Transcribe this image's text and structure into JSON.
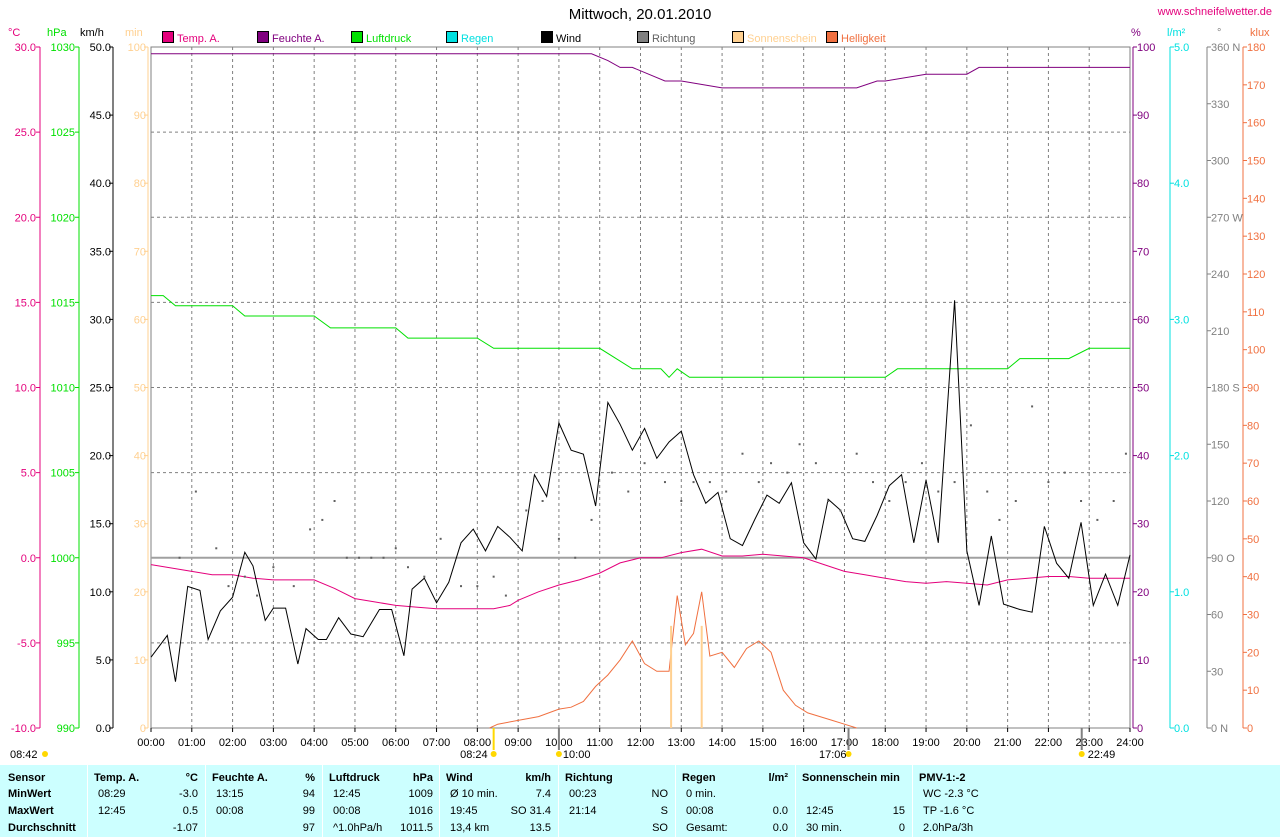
{
  "title": "Mittwoch, 20.01.2010",
  "site": "www.schneifelwetter.de",
  "colors": {
    "temp": "#e4007c",
    "humidity": "#80007f",
    "pressure": "#00e000",
    "rain": "#00e0e0",
    "wind": "#000000",
    "direction": "#808080",
    "sunshine": "#ffd090",
    "brightness": "#f07040",
    "grid": "#808080"
  },
  "legend": [
    {
      "label": "Temp. A.",
      "color": "#e4007c"
    },
    {
      "label": "Feuchte A.",
      "color": "#80007f"
    },
    {
      "label": "Luftdruck",
      "color": "#00e000"
    },
    {
      "label": "Regen",
      "color": "#00e0e0"
    },
    {
      "label": "Wind",
      "color": "#000000"
    },
    {
      "label": "Richtung",
      "color": "#808080"
    },
    {
      "label": "Sonnenschein",
      "color": "#ffd090"
    },
    {
      "label": "Helligkeit",
      "color": "#f07040"
    }
  ],
  "units": {
    "temp": "°C",
    "pressure": "hPa",
    "wind": "km/h",
    "sun": "min",
    "humidity": "%",
    "rain": "l/m²",
    "direction": "°",
    "lux": "klux"
  },
  "sun_events": {
    "moonrise": "08:42",
    "sunrise": "08:24",
    "noon": "10:00",
    "sunset": "17:06",
    "moonset": "22:49"
  },
  "chart_data": {
    "type": "line",
    "x_unit": "hour of day",
    "x_ticks": [
      "00:00",
      "01:00",
      "02:00",
      "03:00",
      "04:00",
      "05:00",
      "06:00",
      "07:00",
      "08:00",
      "09:00",
      "10:00",
      "11:00",
      "12:00",
      "13:00",
      "14:00",
      "15:00",
      "16:00",
      "17:00",
      "18:00",
      "19:00",
      "20:00",
      "21:00",
      "22:00",
      "23:00",
      "24:00"
    ],
    "axes": {
      "temp": {
        "label": "°C",
        "ticks": [
          "30.0",
          "25.0",
          "20.0",
          "15.0",
          "10.0",
          "5.0",
          "0.0",
          "-5.0",
          "-10.0"
        ],
        "ylim": [
          -10,
          30
        ]
      },
      "pressure": {
        "label": "hPa",
        "ticks": [
          "1030",
          "1025",
          "1020",
          "1015",
          "1010",
          "1005",
          "1000",
          "995",
          "990"
        ],
        "ylim": [
          990,
          1030
        ]
      },
      "wind": {
        "label": "km/h",
        "ticks": [
          "50.0",
          "45.0",
          "40.0",
          "35.0",
          "30.0",
          "25.0",
          "20.0",
          "15.0",
          "10.0",
          "5.0",
          "0.0"
        ],
        "ylim": [
          0,
          50
        ]
      },
      "sun": {
        "label": "min",
        "ticks": [
          "100",
          "90",
          "80",
          "70",
          "60",
          "50",
          "40",
          "30",
          "20",
          "10",
          "0"
        ],
        "ylim": [
          0,
          100
        ]
      },
      "humidity": {
        "label": "%",
        "ticks": [
          "100",
          "90",
          "80",
          "70",
          "60",
          "50",
          "40",
          "30",
          "20",
          "10",
          "0"
        ],
        "ylim": [
          0,
          100
        ]
      },
      "rain": {
        "label": "l/m²",
        "ticks": [
          "5.0",
          "4.0",
          "3.0",
          "2.0",
          "1.0",
          "0.0"
        ],
        "ylim": [
          0,
          5
        ]
      },
      "direction": {
        "label": "°",
        "ticks": [
          "360 N",
          "330",
          "300",
          "270 W",
          "240",
          "210",
          "180 S",
          "150",
          "120",
          "90 O",
          "60",
          "30",
          "0 N"
        ],
        "ylim": [
          0,
          360
        ]
      },
      "lux": {
        "label": "klux",
        "ticks": [
          "180",
          "170",
          "160",
          "150",
          "140",
          "130",
          "120",
          "110",
          "100",
          "90",
          "80",
          "70",
          "60",
          "50",
          "40",
          "30",
          "20",
          "10",
          "0"
        ],
        "ylim": [
          0,
          180
        ]
      }
    },
    "series": [
      {
        "name": "Temp. A.",
        "axis": "temp",
        "x": [
          0,
          0.5,
          1,
          1.5,
          2,
          2.5,
          3,
          3.5,
          4,
          4.5,
          5,
          5.5,
          6,
          6.5,
          7,
          7.5,
          8,
          8.4,
          8.8,
          9,
          9.5,
          10,
          10.5,
          11,
          11.5,
          12,
          12.5,
          13,
          13.5,
          14,
          14.5,
          15,
          15.5,
          16,
          16.5,
          17,
          17.5,
          18,
          18.5,
          19,
          19.5,
          20,
          20.5,
          21,
          21.5,
          22,
          22.5,
          23,
          23.5,
          24
        ],
        "y": [
          -0.4,
          -0.6,
          -0.8,
          -1.0,
          -1.0,
          -1.2,
          -1.3,
          -1.3,
          -1.3,
          -1.8,
          -2.4,
          -2.6,
          -2.8,
          -2.9,
          -3.0,
          -3.0,
          -3.0,
          -3.0,
          -2.8,
          -2.5,
          -2.0,
          -1.6,
          -1.3,
          -0.9,
          -0.3,
          0.0,
          0.0,
          0.3,
          0.5,
          0.1,
          0.1,
          0.2,
          0.1,
          0.0,
          -0.4,
          -0.8,
          -1.0,
          -1.2,
          -1.4,
          -1.5,
          -1.4,
          -1.5,
          -1.6,
          -1.3,
          -1.2,
          -1.1,
          -1.1,
          -1.2,
          -1.2,
          -1.2
        ]
      },
      {
        "name": "Feuchte A.",
        "axis": "humidity",
        "x": [
          0,
          1,
          2,
          3,
          4,
          5,
          6,
          7,
          8,
          9,
          10,
          10.8,
          11.2,
          11.5,
          11.8,
          12.2,
          12.6,
          13,
          14,
          15,
          16,
          17,
          17.3,
          17.8,
          18,
          19,
          19.5,
          20,
          20.3,
          21,
          22,
          23,
          24
        ],
        "y": [
          99,
          99,
          99,
          99,
          99,
          99,
          99,
          99,
          99,
          99,
          99,
          99,
          98,
          97,
          97,
          96,
          95,
          95,
          94,
          94,
          94,
          94,
          94,
          95,
          95,
          96,
          96,
          96,
          97,
          97,
          97,
          97,
          97
        ]
      },
      {
        "name": "Luftdruck",
        "axis": "pressure",
        "x": [
          0,
          0.3,
          0.6,
          1,
          2,
          2.3,
          3,
          4,
          4.4,
          5,
          6,
          6.3,
          7,
          8,
          8.4,
          9,
          10,
          11,
          11.8,
          12.5,
          12.7,
          12.9,
          13.2,
          14,
          15,
          16,
          17,
          17.5,
          18,
          18.3,
          19,
          20,
          20.3,
          21,
          21.3,
          22,
          22.5,
          23,
          24
        ],
        "y": [
          1015.4,
          1015.4,
          1014.8,
          1014.8,
          1014.8,
          1014.2,
          1014.2,
          1014.2,
          1013.5,
          1013.5,
          1013.5,
          1012.9,
          1012.9,
          1012.9,
          1012.3,
          1012.3,
          1012.3,
          1012.3,
          1011.1,
          1011.1,
          1010.6,
          1011.1,
          1010.6,
          1010.6,
          1010.6,
          1010.6,
          1010.6,
          1010.6,
          1010.6,
          1011.1,
          1011.1,
          1011.1,
          1011.1,
          1011.1,
          1011.7,
          1011.7,
          1011.7,
          1012.3,
          1012.3
        ]
      },
      {
        "name": "Wind",
        "axis": "wind",
        "x": [
          0,
          0.4,
          0.6,
          0.9,
          1.2,
          1.4,
          1.7,
          2.0,
          2.3,
          2.5,
          2.8,
          3.0,
          3.3,
          3.6,
          3.8,
          4.1,
          4.3,
          4.6,
          4.9,
          5.2,
          5.6,
          5.9,
          6.2,
          6.4,
          6.7,
          7.0,
          7.3,
          7.6,
          7.9,
          8.2,
          8.5,
          8.8,
          9.1,
          9.4,
          9.7,
          10.0,
          10.3,
          10.6,
          10.9,
          11.2,
          11.5,
          11.8,
          12.1,
          12.4,
          12.7,
          13.0,
          13.3,
          13.6,
          13.9,
          14.2,
          14.5,
          14.8,
          15.1,
          15.4,
          15.7,
          16.0,
          16.3,
          16.6,
          16.9,
          17.2,
          17.5,
          17.8,
          18.1,
          18.4,
          18.7,
          19.0,
          19.3,
          19.7,
          20.0,
          20.3,
          20.6,
          20.9,
          21.3,
          21.6,
          21.9,
          22.2,
          22.5,
          22.8,
          23.1,
          23.4,
          23.7,
          24.0
        ],
        "y": [
          5.2,
          6.8,
          3.4,
          10.4,
          10.1,
          6.5,
          8.6,
          9.6,
          12.9,
          11.9,
          7.9,
          8.8,
          8.8,
          4.7,
          7.3,
          6.5,
          6.5,
          8.1,
          6.9,
          6.7,
          8.7,
          8.7,
          5.3,
          10.2,
          11.0,
          9.2,
          10.7,
          13.6,
          14.6,
          13.0,
          14.8,
          14.0,
          13.0,
          18.6,
          17.0,
          22.4,
          20.4,
          20.1,
          16.3,
          23.9,
          22.3,
          20.4,
          22.0,
          19.8,
          21.0,
          21.8,
          18.6,
          16.5,
          17.3,
          13.9,
          13.4,
          15.3,
          17.1,
          16.5,
          18.0,
          13.6,
          12.4,
          16.8,
          16.0,
          13.9,
          13.7,
          15.6,
          17.8,
          18.6,
          13.6,
          18.2,
          13.6,
          31.4,
          13.0,
          9.0,
          14.1,
          9.1,
          8.7,
          8.5,
          14.8,
          12.1,
          11.0,
          15.1,
          9.0,
          11.3,
          9.0,
          12.7
        ]
      },
      {
        "name": "Richtung",
        "axis": "direction",
        "x": [
          0.7,
          1.1,
          1.6,
          1.9,
          2.3,
          2.6,
          3.0,
          3.5,
          3.9,
          4.2,
          4.5,
          4.8,
          5.1,
          5.4,
          5.7,
          6.0,
          6.3,
          6.7,
          7.1,
          7.6,
          8.0,
          8.4,
          8.7,
          9.2,
          9.6,
          10.0,
          10.4,
          10.8,
          11.3,
          11.7,
          12.1,
          12.6,
          13.0,
          13.3,
          13.7,
          14.1,
          14.5,
          14.9,
          15.2,
          15.6,
          15.9,
          16.3,
          16.6,
          16.9,
          17.3,
          17.7,
          18.1,
          18.5,
          18.9,
          19.3,
          19.7,
          20.1,
          20.5,
          20.8,
          21.2,
          21.6,
          22.0,
          22.4,
          22.8,
          23.2,
          23.6,
          23.9
        ],
        "y": [
          90,
          125,
          95,
          75,
          80,
          70,
          85,
          75,
          105,
          110,
          120,
          90,
          90,
          90,
          90,
          95,
          85,
          80,
          100,
          75,
          75,
          80,
          70,
          115,
          120,
          100,
          90,
          110,
          135,
          125,
          140,
          130,
          120,
          130,
          130,
          125,
          145,
          130,
          140,
          135,
          150,
          140,
          120,
          115,
          145,
          130,
          120,
          130,
          140,
          125,
          130,
          160,
          125,
          110,
          120,
          170,
          130,
          135,
          120,
          110,
          120,
          145
        ]
      },
      {
        "name": "Helligkeit",
        "axis": "lux",
        "x": [
          8.3,
          8.5,
          9.0,
          9.5,
          10.0,
          10.3,
          10.6,
          10.9,
          11.2,
          11.5,
          11.8,
          12.1,
          12.4,
          12.7,
          12.9,
          13.1,
          13.3,
          13.5,
          13.7,
          14.0,
          14.3,
          14.6,
          14.9,
          15.2,
          15.5,
          15.8,
          16.1,
          16.4,
          16.7,
          17.0,
          17.3
        ],
        "y": [
          0,
          1,
          2,
          3,
          5,
          5.5,
          7,
          11,
          14,
          18,
          23,
          17,
          15,
          15,
          35,
          22,
          25,
          36,
          19,
          20,
          16,
          21,
          23,
          20,
          10,
          6,
          4,
          3,
          2,
          1,
          0
        ]
      },
      {
        "name": "Sonnenschein",
        "axis": "sun",
        "x": [
          12.75,
          13.5
        ],
        "y": [
          15,
          15
        ]
      }
    ]
  },
  "table": {
    "rows": [
      "Sensor",
      "MinWert",
      "MaxWert",
      "Durchschnitt"
    ],
    "columns": [
      {
        "head": "Temp. A.",
        "unit": "°C",
        "cells": [
          [
            "08:29",
            "-3.0"
          ],
          [
            "12:45",
            "0.5"
          ],
          [
            "",
            "-1.07"
          ]
        ]
      },
      {
        "head": "Feuchte A.",
        "unit": "%",
        "cells": [
          [
            "13:15",
            "94"
          ],
          [
            "00:08",
            "99"
          ],
          [
            "",
            "97"
          ]
        ]
      },
      {
        "head": "Luftdruck",
        "unit": "hPa",
        "cells": [
          [
            "12:45",
            "1009"
          ],
          [
            "00:08",
            "1016"
          ],
          [
            "^1.0hPa/h",
            "1011.5"
          ]
        ]
      },
      {
        "head": "Wind",
        "unit": "km/h",
        "cells": [
          [
            "Ø 10 min.",
            "7.4"
          ],
          [
            "19:45",
            "SO 31.4"
          ],
          [
            "13,4 km",
            "13.5"
          ]
        ]
      },
      {
        "head": "Richtung",
        "unit": "",
        "cells": [
          [
            "00:23",
            "NO"
          ],
          [
            "21:14",
            "S"
          ],
          [
            "",
            "SO"
          ]
        ]
      },
      {
        "head": "Regen",
        "unit": "l/m²",
        "cells": [
          [
            "0 min.",
            ""
          ],
          [
            "00:08",
            "0.0"
          ],
          [
            "Gesamt:",
            "0.0"
          ]
        ]
      },
      {
        "head": "Sonnenschein min",
        "unit": "",
        "cells": [
          [
            "",
            ""
          ],
          [
            "12:45",
            "15"
          ],
          [
            "30 min.",
            "0"
          ]
        ]
      },
      {
        "head": "PMV-1:-2",
        "unit": "",
        "cells": [
          [
            "WC -2.3 °C",
            ""
          ],
          [
            "TP -1.6 °C",
            ""
          ],
          [
            "2.0hPa/3h",
            ""
          ]
        ]
      }
    ]
  }
}
